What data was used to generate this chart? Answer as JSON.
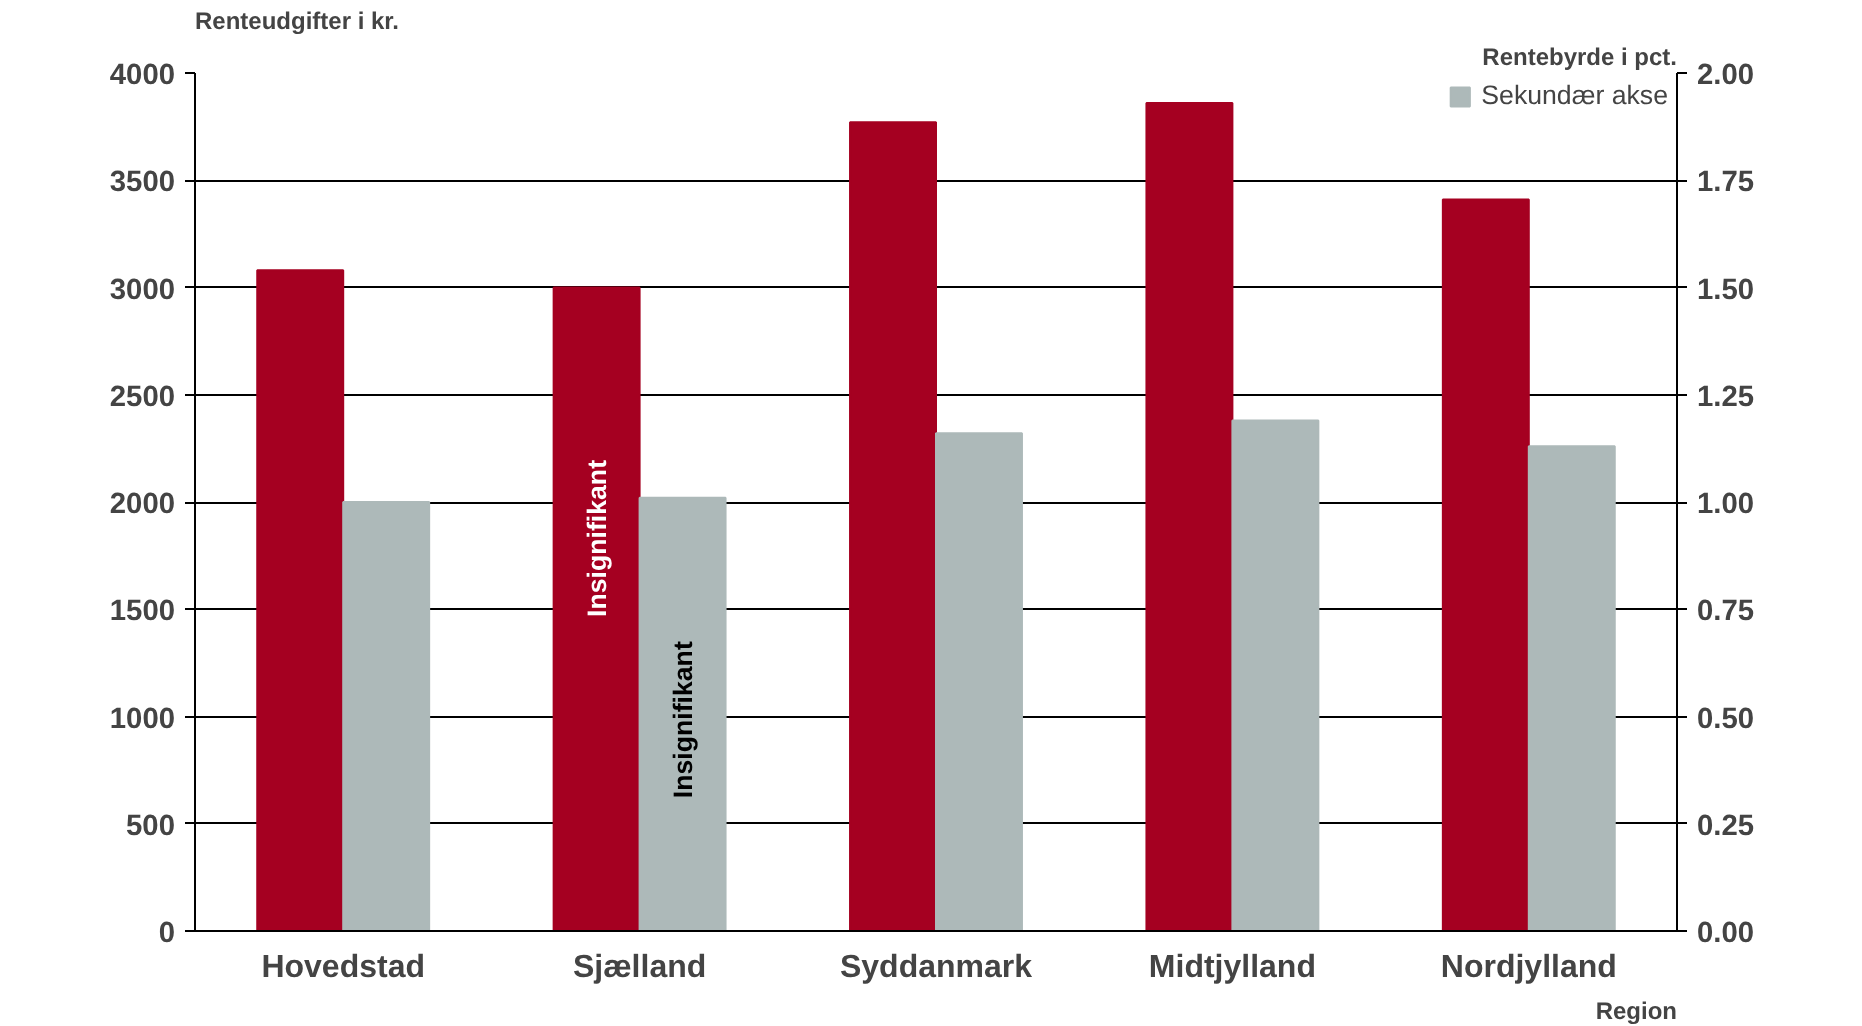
{
  "chart_data": {
    "type": "bar",
    "xlabel": "Region",
    "ylabel": "Renteudgifter i kr.",
    "y2label": "Rentebyrde i pct.",
    "categories": [
      "Hovedstad",
      "Sjælland",
      "Syddanmark",
      "Midtjylland",
      "Nordjylland"
    ],
    "series": [
      {
        "color": "#a50021",
        "values": [
          3080,
          3000,
          3770,
          3860,
          3410
        ]
      },
      {
        "name": "Sekundær akse",
        "color": "#adb9b9",
        "axis": "y2",
        "values": [
          1.0,
          1.01,
          1.16,
          1.19,
          1.13
        ]
      }
    ],
    "ylim": [
      0,
      4000
    ],
    "yticks": [
      0,
      500,
      1000,
      1500,
      2000,
      2500,
      3000,
      3500,
      4000
    ],
    "y2lim": [
      0,
      2
    ],
    "y2ticks": [
      {
        "value": 0,
        "label": "0.00"
      },
      {
        "value": 0.25,
        "label": "0.25"
      },
      {
        "value": 0.5,
        "label": "0.50"
      },
      {
        "value": 0.75,
        "label": "0.75"
      },
      {
        "value": 1,
        "label": "1.00"
      },
      {
        "value": 1.25,
        "label": "1.25"
      },
      {
        "value": 1.5,
        "label": "1.50"
      },
      {
        "value": 1.75,
        "label": "1.75"
      },
      {
        "value": 2,
        "label": "2.00"
      }
    ],
    "annotations": [
      {
        "text": "Insignifikant",
        "x": "Sjælland",
        "y": 1830
      },
      {
        "text": "Insignifikant",
        "x": "Sjælland",
        "y": 985
      }
    ],
    "grid": "y",
    "legend": "top right"
  }
}
